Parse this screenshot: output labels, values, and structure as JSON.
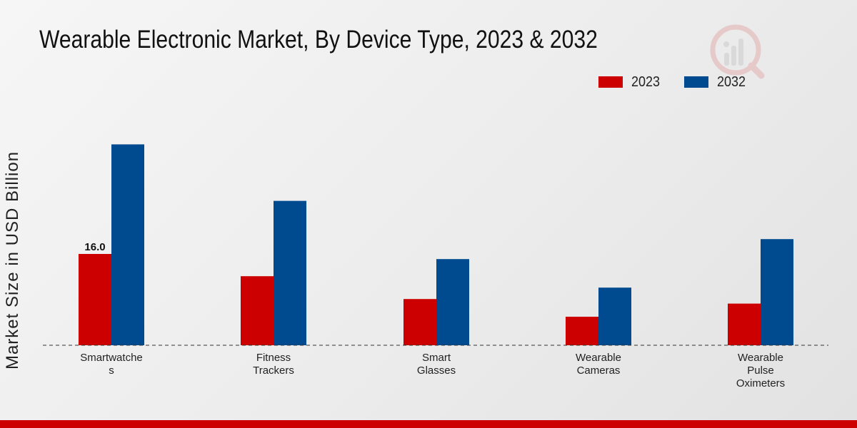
{
  "chart_data": {
    "type": "bar",
    "title": "Wearable Electronic Market, By Device Type, 2023 & 2032",
    "xlabel": "",
    "ylabel": "Market Size in USD Billion",
    "categories": [
      [
        "Smartwatche",
        "s"
      ],
      [
        "Fitness",
        "Trackers"
      ],
      [
        "Smart",
        "Glasses"
      ],
      [
        "Wearable",
        "Cameras"
      ],
      [
        "Wearable",
        "Pulse",
        "Oximeters"
      ]
    ],
    "series": [
      {
        "name": "2023",
        "color": "#cc0000",
        "values": [
          16.0,
          12.1,
          8.1,
          5.0,
          7.3
        ]
      },
      {
        "name": "2032",
        "color": "#004a8f",
        "values": [
          35.2,
          25.3,
          15.1,
          10.1,
          18.6
        ]
      }
    ],
    "data_labels": [
      {
        "series": 0,
        "index": 0,
        "text": "16.0"
      }
    ],
    "ylim": [
      0,
      42
    ],
    "legend_position": "top-right",
    "grid": false
  },
  "colors": {
    "footer_bar": "#cc0000",
    "baseline": "#333333"
  }
}
